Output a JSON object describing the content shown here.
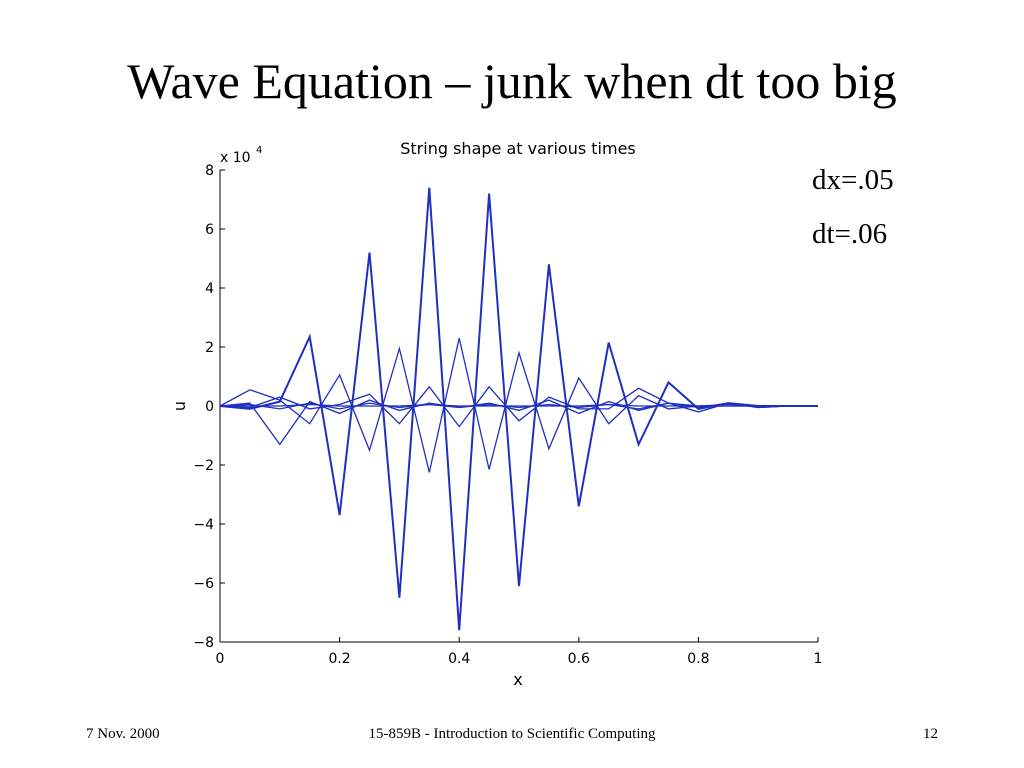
{
  "slide": {
    "title": "Wave Equation – junk when dt too big",
    "params": [
      "dx=.05",
      "dt=.06"
    ],
    "footer": {
      "date": "7 Nov. 2000",
      "course": "15-859B - Introduction to Scientific Computing",
      "page": "12"
    }
  },
  "chart_data": {
    "type": "line",
    "title": "String shape at various times",
    "xlabel": "x",
    "ylabel": "u",
    "y_exponent_label": "x 10",
    "y_exponent_power": "4",
    "xlim": [
      0,
      1
    ],
    "ylim": [
      -80000,
      80000
    ],
    "x_ticks": [
      0,
      0.2,
      0.4,
      0.6,
      0.8,
      1
    ],
    "x_tick_labels": [
      "0",
      "0.2",
      "0.4",
      "0.6",
      "0.8",
      "1"
    ],
    "y_ticks": [
      -80000,
      -60000,
      -40000,
      -20000,
      0,
      20000,
      40000,
      60000,
      80000
    ],
    "y_tick_labels": [
      "−8",
      "−6",
      "−4",
      "−2",
      "0",
      "2",
      "4",
      "6",
      "8"
    ],
    "grid": false,
    "line_color": "#1f2fbf",
    "x": [
      0,
      0.05,
      0.1,
      0.15,
      0.2,
      0.25,
      0.3,
      0.35,
      0.4,
      0.45,
      0.5,
      0.55,
      0.6,
      0.65,
      0.7,
      0.75,
      0.8,
      0.85,
      0.9,
      0.95,
      1
    ],
    "series": [
      {
        "values": [
          0,
          -1000,
          1500,
          23500,
          -37000,
          52000,
          -65000,
          74000,
          -76000,
          72000,
          -61000,
          48000,
          -34000,
          21500,
          -13000,
          8000,
          -1000,
          1000,
          0,
          0,
          0
        ]
      },
      {
        "values": [
          0,
          1000,
          -13000,
          1500,
          -2500,
          2000,
          -1500,
          1000,
          -500,
          1000,
          -1500,
          2000,
          -2500,
          1500,
          -1500,
          1000,
          0,
          0,
          0,
          0,
          0
        ]
      },
      {
        "values": [
          0,
          5500,
          2000,
          -6000,
          10500,
          -15000,
          19500,
          -22500,
          23000,
          -21500,
          18000,
          -14500,
          9500,
          -6000,
          3500,
          -1000,
          0,
          0,
          0,
          0,
          0
        ]
      },
      {
        "values": [
          0,
          -500,
          3000,
          -1000,
          500,
          4000,
          -6000,
          6500,
          -7000,
          6500,
          -5000,
          3000,
          -1000,
          -1000,
          6000,
          1000,
          -2000,
          1000,
          -500,
          0,
          0
        ]
      },
      {
        "values": [
          0,
          500,
          -1000,
          1000,
          -1000,
          1000,
          -500,
          500,
          -500,
          500,
          -500,
          500,
          -500,
          500,
          -1000,
          1000,
          -500,
          1000,
          -500,
          0,
          0
        ]
      },
      {
        "values": [
          0,
          0,
          0,
          500,
          0,
          0,
          0,
          500,
          0,
          0,
          0,
          0,
          0,
          500,
          0,
          0,
          0,
          500,
          0,
          0,
          0
        ]
      }
    ]
  }
}
